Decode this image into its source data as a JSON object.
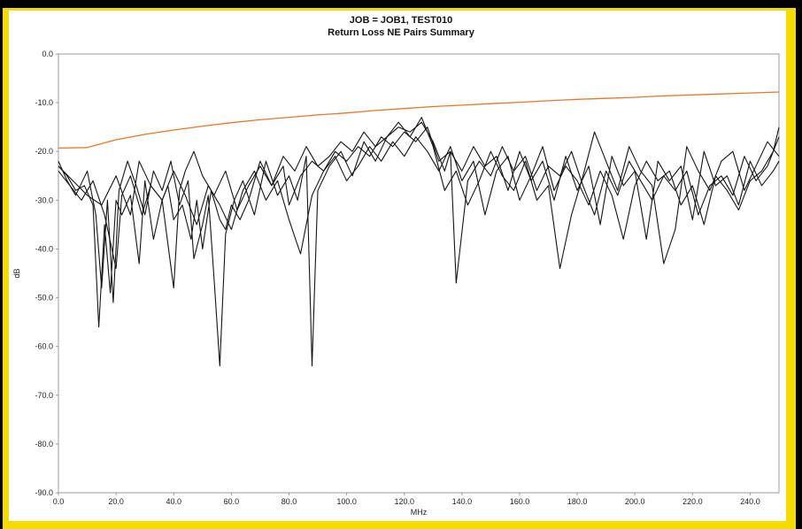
{
  "chart_data": {
    "type": "line",
    "title": "JOB = JOB1, TEST010",
    "subtitle": "Return Loss NE Pairs Summary",
    "xlabel": "MHz",
    "ylabel": "dB",
    "xlim": [
      0,
      250
    ],
    "ylim": [
      -90,
      0
    ],
    "xticks": [
      "0.0",
      "20.0",
      "40.0",
      "60.0",
      "80.0",
      "100.0",
      "120.0",
      "140.0",
      "160.0",
      "180.0",
      "200.0",
      "220.0",
      "240.0"
    ],
    "yticks": [
      "0.0",
      "-10.0",
      "-20.0",
      "-30.0",
      "-40.0",
      "-50.0",
      "-60.0",
      "-70.0",
      "-80.0",
      "-90.0"
    ],
    "grid": false,
    "colors": {
      "limit": "#e8762c",
      "pairs": "#141414"
    },
    "series": [
      {
        "role": "limit",
        "x": [
          0,
          10,
          20,
          30,
          40,
          50,
          60,
          70,
          80,
          90,
          100,
          110,
          120,
          130,
          140,
          150,
          160,
          170,
          180,
          190,
          200,
          210,
          220,
          230,
          240,
          250
        ],
        "values": [
          -19.3,
          -19.2,
          -17.6,
          -16.5,
          -15.6,
          -14.8,
          -14.1,
          -13.5,
          -13.0,
          -12.5,
          -12.1,
          -11.6,
          -11.2,
          -10.8,
          -10.5,
          -10.2,
          -9.9,
          -9.6,
          -9.3,
          -9.1,
          -8.9,
          -8.6,
          -8.4,
          -8.2,
          -8.0,
          -7.8
        ]
      },
      {
        "role": "pair",
        "x": [
          0,
          3,
          6,
          9,
          12,
          14,
          16,
          18,
          20,
          22,
          25,
          28,
          30,
          33,
          36,
          38,
          40,
          43,
          46,
          48,
          50,
          53,
          56,
          58,
          60,
          63,
          66,
          70,
          74,
          78,
          80,
          84,
          88,
          92,
          96,
          100,
          104,
          108,
          112,
          116,
          120,
          124,
          128,
          132,
          136,
          140,
          144,
          148,
          152,
          156,
          160,
          164,
          168,
          172,
          176,
          180,
          184,
          188,
          192,
          196,
          200,
          204,
          208,
          212,
          216,
          220,
          224,
          228,
          232,
          236,
          240,
          244,
          248,
          250
        ],
        "values": [
          -23,
          -25,
          -28,
          -27,
          -31,
          -56,
          -35,
          -49,
          -30,
          -33,
          -29,
          -43,
          -26,
          -38,
          -30,
          -27,
          -34,
          -31,
          -38,
          -30,
          -40,
          -28,
          -34,
          -36,
          -31,
          -34,
          -30,
          -22,
          -27,
          -23,
          -31,
          -25,
          -22,
          -24,
          -20,
          -22,
          -19,
          -21,
          -17,
          -19,
          -16,
          -18,
          -15,
          -22,
          -20,
          -24,
          -19,
          -23,
          -21,
          -28,
          -20,
          -26,
          -22,
          -30,
          -21,
          -28,
          -23,
          -35,
          -21,
          -27,
          -24,
          -38,
          -22,
          -26,
          -23,
          -34,
          -20,
          -27,
          -25,
          -31,
          -22,
          -27,
          -24,
          -22
        ]
      },
      {
        "role": "pair",
        "x": [
          0,
          3,
          6,
          10,
          13,
          15,
          17,
          19,
          21,
          24,
          27,
          30,
          33,
          36,
          39,
          42,
          45,
          47,
          50,
          52,
          54,
          56,
          58,
          61,
          64,
          68,
          72,
          76,
          80,
          83,
          86,
          88,
          90,
          94,
          98,
          102,
          106,
          110,
          114,
          118,
          122,
          126,
          130,
          134,
          136,
          138,
          142,
          146,
          150,
          154,
          158,
          162,
          166,
          170,
          174,
          178,
          182,
          186,
          190,
          194,
          198,
          202,
          206,
          210,
          214,
          218,
          222,
          226,
          230,
          234,
          238,
          242,
          246,
          250
        ],
        "values": [
          -22,
          -26,
          -29,
          -24,
          -33,
          -48,
          -30,
          -51,
          -28,
          -22,
          -27,
          -33,
          -24,
          -28,
          -22,
          -31,
          -26,
          -42,
          -35,
          -29,
          -46,
          -64,
          -37,
          -30,
          -26,
          -33,
          -22,
          -29,
          -25,
          -30,
          -21,
          -64,
          -28,
          -23,
          -20,
          -25,
          -18,
          -22,
          -17,
          -15,
          -16,
          -14,
          -18,
          -24,
          -20,
          -47,
          -26,
          -22,
          -25,
          -19,
          -24,
          -21,
          -28,
          -23,
          -25,
          -20,
          -27,
          -33,
          -24,
          -29,
          -22,
          -26,
          -30,
          -25,
          -28,
          -24,
          -33,
          -27,
          -25,
          -29,
          -21,
          -26,
          -23,
          -17
        ]
      },
      {
        "role": "pair",
        "x": [
          0,
          4,
          8,
          12,
          16,
          20,
          22,
          25,
          29,
          32,
          36,
          40,
          42,
          44,
          47,
          50,
          54,
          58,
          62,
          66,
          70,
          74,
          78,
          82,
          86,
          90,
          94,
          98,
          102,
          106,
          110,
          114,
          118,
          122,
          126,
          130,
          134,
          138,
          142,
          146,
          150,
          154,
          158,
          162,
          166,
          170,
          174,
          178,
          182,
          186,
          190,
          194,
          198,
          202,
          206,
          210,
          214,
          218,
          222,
          226,
          230,
          234,
          238,
          242,
          246,
          250
        ],
        "values": [
          -24,
          -27,
          -30,
          -26,
          -33,
          -44,
          -29,
          -25,
          -33,
          -27,
          -30,
          -48,
          -28,
          -24,
          -20,
          -25,
          -29,
          -24,
          -32,
          -27,
          -23,
          -27,
          -21,
          -24,
          -19,
          -23,
          -21,
          -18,
          -20,
          -16,
          -19,
          -17,
          -14,
          -17,
          -13,
          -19,
          -28,
          -24,
          -31,
          -26,
          -20,
          -25,
          -28,
          -22,
          -30,
          -27,
          -44,
          -33,
          -25,
          -16,
          -22,
          -28,
          -19,
          -24,
          -27,
          -43,
          -36,
          -19,
          -24,
          -28,
          -22,
          -20,
          -28,
          -23,
          -18,
          -21
        ]
      },
      {
        "role": "pair",
        "x": [
          0,
          5,
          10,
          15,
          20,
          25,
          28,
          32,
          36,
          40,
          44,
          48,
          52,
          56,
          60,
          64,
          68,
          72,
          76,
          80,
          84,
          88,
          92,
          96,
          100,
          104,
          108,
          112,
          116,
          120,
          124,
          128,
          132,
          136,
          140,
          144,
          148,
          152,
          156,
          160,
          164,
          168,
          172,
          176,
          180,
          184,
          188,
          192,
          196,
          200,
          204,
          208,
          212,
          216,
          220,
          224,
          228,
          232,
          236,
          240,
          244,
          248,
          250
        ],
        "values": [
          -23,
          -26,
          -29,
          -31,
          -25,
          -33,
          -22,
          -27,
          -30,
          -24,
          -29,
          -35,
          -27,
          -31,
          -36,
          -28,
          -24,
          -30,
          -26,
          -34,
          -41,
          -29,
          -24,
          -21,
          -26,
          -23,
          -19,
          -22,
          -18,
          -21,
          -17,
          -20,
          -24,
          -19,
          -26,
          -22,
          -33,
          -24,
          -21,
          -30,
          -25,
          -19,
          -28,
          -23,
          -26,
          -31,
          -24,
          -29,
          -38,
          -27,
          -22,
          -26,
          -24,
          -31,
          -27,
          -35,
          -25,
          -28,
          -32,
          -26,
          -24,
          -20,
          -15
        ]
      }
    ]
  }
}
